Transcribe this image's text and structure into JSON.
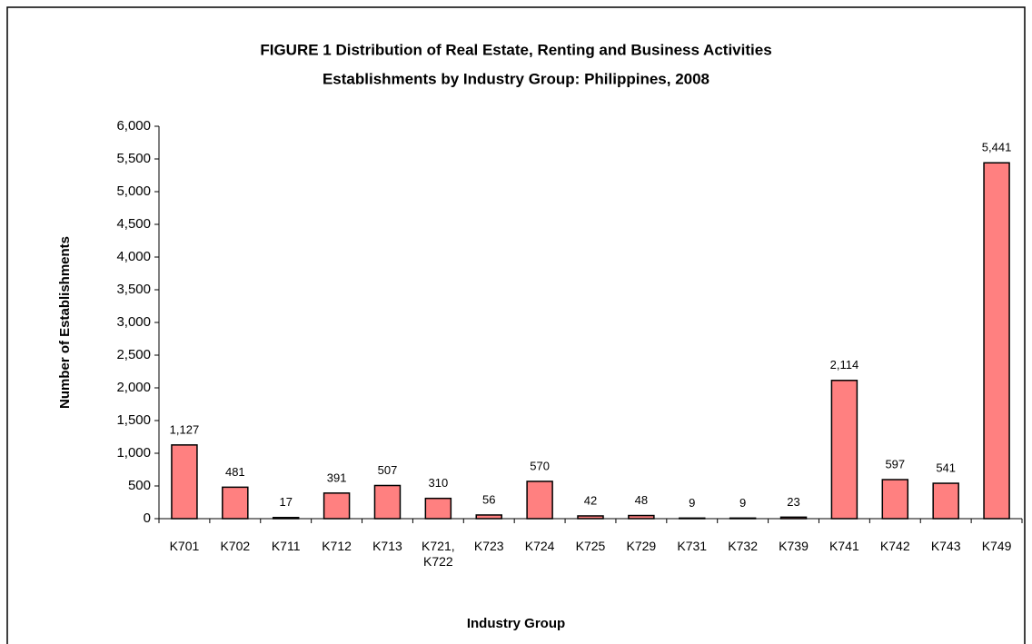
{
  "chart_data": {
    "type": "bar",
    "title": [
      "FIGURE 1  Distribution of Real Estate, Renting and Business Activities",
      "Establishments by Industry Group: Philippines, 2008"
    ],
    "x_label": "Industry Group",
    "y_label": "Number of Establishments",
    "categories": [
      "K701",
      "K702",
      "K711",
      "K712",
      "K713",
      "K721, K722",
      "K723",
      "K724",
      "K725",
      "K729",
      "K731",
      "K732",
      "K739",
      "K741",
      "K742",
      "K743",
      "K749"
    ],
    "values": [
      1127,
      481,
      17,
      391,
      507,
      310,
      56,
      570,
      42,
      48,
      9,
      9,
      23,
      2114,
      597,
      541,
      5441
    ],
    "value_labels": [
      "1,127",
      "481",
      "17",
      "391",
      "507",
      "310",
      "56",
      "570",
      "42",
      "48",
      "9",
      "9",
      "23",
      "2,114",
      "597",
      "541",
      "5,441"
    ],
    "color": "#ff8080",
    "ylim": [
      0,
      6000
    ],
    "yticks": [
      0,
      500,
      {
        "value": 1000,
        "label": "1,000"
      },
      {
        "value": 1500,
        "label": "1,500"
      },
      {
        "value": 2000,
        "label": "2,000"
      },
      {
        "value": 2500,
        "label": "2,500"
      },
      {
        "value": 3000,
        "label": "3,000"
      },
      {
        "value": 3500,
        "label": "3,500"
      },
      {
        "value": 4000,
        "label": "4,000"
      },
      {
        "value": 4500,
        "label": "4,500"
      },
      {
        "value": 5000,
        "label": "5,000"
      },
      {
        "value": 5500,
        "label": "5,500"
      },
      {
        "value": 6000,
        "label": "6,000"
      }
    ],
    "grid": false
  }
}
